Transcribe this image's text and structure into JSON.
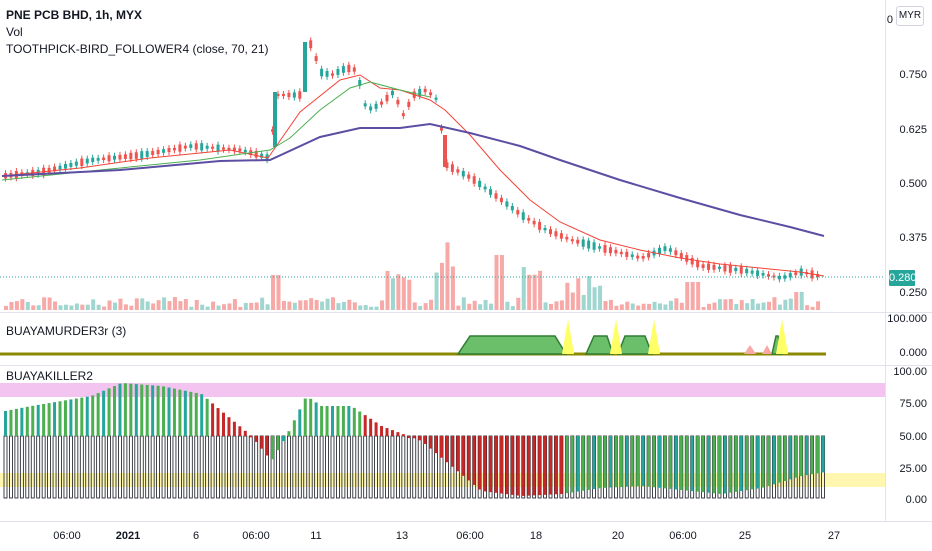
{
  "main_pane": {
    "title": "PNE PCB BHD, 1h, MYX",
    "volume_label": "Vol",
    "indicator_label": "TOOTHPICK-BIRD_FOLLOWER4 (close, 70, 21)",
    "currency_button": "MYR",
    "last_price": "0.280",
    "price_ticks": [
      "0.750",
      "0.625",
      "0.500",
      "0.375",
      "0.250"
    ],
    "top_tick_partial": "0"
  },
  "pane2": {
    "title": "BUAYAMURDER3r (3)",
    "ticks": [
      "100.000",
      "0.000"
    ]
  },
  "pane3": {
    "title": "BUAYAKILLER2",
    "ticks": [
      "100.00",
      "75.00",
      "50.00",
      "25.00",
      "0.00"
    ]
  },
  "time_axis": {
    "labels": [
      {
        "text": "06:00",
        "bold": false
      },
      {
        "text": "2021",
        "bold": true
      },
      {
        "text": "6",
        "bold": false
      },
      {
        "text": "06:00",
        "bold": false
      },
      {
        "text": "11",
        "bold": false
      },
      {
        "text": "13",
        "bold": false
      },
      {
        "text": "06:00",
        "bold": false
      },
      {
        "text": "18",
        "bold": false
      },
      {
        "text": "20",
        "bold": false
      },
      {
        "text": "06:00",
        "bold": false
      },
      {
        "text": "25",
        "bold": false
      },
      {
        "text": "27",
        "bold": false
      }
    ]
  },
  "colors": {
    "up": "#26a69a",
    "down": "#ef5350",
    "ma_fast": "#f44336",
    "ma_mid": "#4caf50",
    "ma_slow": "#5b4ea3",
    "vol_up": "#9fd6d0",
    "vol_down": "#f7a9a7",
    "murder_fill": "#6cbf6a",
    "murder_line": "#8a8a00",
    "spike": "#ffff66",
    "pink_band": "#f3c4f0",
    "yellow_band": "#fff6b0"
  }
}
